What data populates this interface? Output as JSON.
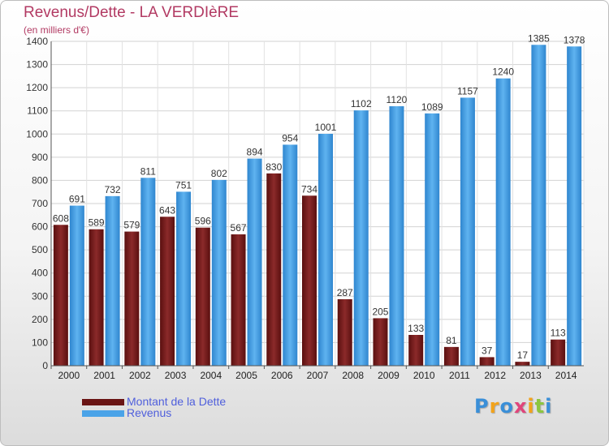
{
  "header": {
    "title": "Revenus/Dette - LA VERDIèRE",
    "subtitle": "(en milliers d'€)"
  },
  "colors": {
    "debt": "#7a1e1e",
    "revenue": "#4aa3e8",
    "title": "#b23a63",
    "legend_text": "#4f5fdc"
  },
  "legend": [
    {
      "label": "Montant de la Dette",
      "color": "#6a1414"
    },
    {
      "label": "Revenus",
      "color": "#4aa3e8"
    }
  ],
  "logo": {
    "text": "Proxiti",
    "letters": [
      {
        "ch": "P",
        "color": "#3a8fd8"
      },
      {
        "ch": "r",
        "color": "#f2a31b"
      },
      {
        "ch": "o",
        "color": "#3a8fd8"
      },
      {
        "ch": "x",
        "color": "#e0457b"
      },
      {
        "ch": "i",
        "color": "#f2a31b"
      },
      {
        "ch": "t",
        "color": "#8cc63f"
      },
      {
        "ch": "i",
        "color": "#3a8fd8"
      }
    ]
  },
  "chart_data": {
    "type": "bar",
    "categories": [
      "2000",
      "2001",
      "2002",
      "2003",
      "2004",
      "2005",
      "2006",
      "2007",
      "2008",
      "2009",
      "2010",
      "2011",
      "2012",
      "2013",
      "2014"
    ],
    "series": [
      {
        "name": "Montant de la Dette",
        "values": [
          608,
          589,
          579,
          643,
          596,
          567,
          830,
          734,
          287,
          205,
          133,
          81,
          37,
          17,
          113
        ],
        "labels": [
          "608",
          "589",
          "579",
          "643",
          "596",
          "567",
          "830",
          "734",
          "287",
          "205",
          "133",
          "81",
          "37",
          "17",
          "113"
        ]
      },
      {
        "name": "Revenus",
        "values": [
          691,
          732,
          811,
          751,
          802,
          894,
          954,
          1001,
          1102,
          1120,
          1089,
          1157,
          1240,
          1385,
          1378
        ],
        "labels": [
          "691",
          "732",
          "811",
          "751",
          "802",
          "894",
          "954",
          "1001",
          "1102",
          "1120",
          "1089",
          "1157",
          "1240",
          "1385",
          "1378"
        ]
      }
    ],
    "yticks": [
      0,
      100,
      200,
      300,
      400,
      500,
      600,
      700,
      800,
      900,
      1000,
      1100,
      1200,
      1300,
      1400
    ],
    "ylim": [
      0,
      1400
    ],
    "grid": true,
    "legend_position": "bottom-left"
  }
}
